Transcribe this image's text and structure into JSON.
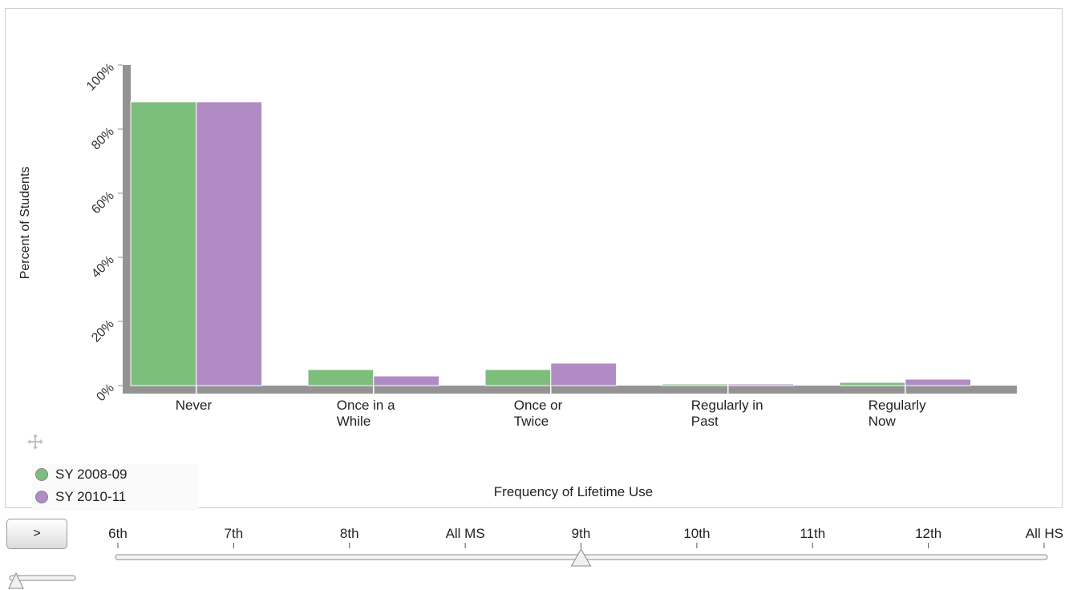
{
  "chart_data": {
    "type": "bar",
    "title": "",
    "xlabel": "Frequency of Lifetime Use",
    "ylabel": "Percent of Students",
    "ylim": [
      0,
      100
    ],
    "yticks": [
      "0%",
      "20%",
      "40%",
      "60%",
      "80%",
      "100%"
    ],
    "categories": [
      "Never",
      "Once in a While",
      "Once or Twice",
      "Regularly in Past",
      "Regularly Now"
    ],
    "category_lines": [
      [
        "Never"
      ],
      [
        "Once in a",
        "While"
      ],
      [
        "Once or",
        "Twice"
      ],
      [
        "Regularly in",
        "Past"
      ],
      [
        "Regularly",
        "Now"
      ]
    ],
    "series": [
      {
        "name": "SY 2008-09",
        "values": [
          88.5,
          5.0,
          5.0,
          0.5,
          1.0
        ]
      },
      {
        "name": "SY 2010-11",
        "values": [
          88.5,
          3.0,
          7.0,
          0.5,
          2.0
        ]
      }
    ],
    "colors": [
      "#7dbe7d",
      "#b08bc4"
    ],
    "legend": "bottom-left",
    "grid": false
  },
  "legend": {
    "items": [
      {
        "label": "SY 2008-09",
        "color": "#7dbe7d"
      },
      {
        "label": "SY 2010-11",
        "color": "#b08bc4"
      }
    ]
  },
  "controls": {
    "play_label": ">",
    "timeline_labels": [
      "6th",
      "7th",
      "8th",
      "All MS",
      "9th",
      "10th",
      "11th",
      "12th",
      "All HS"
    ],
    "selected": "9th"
  }
}
